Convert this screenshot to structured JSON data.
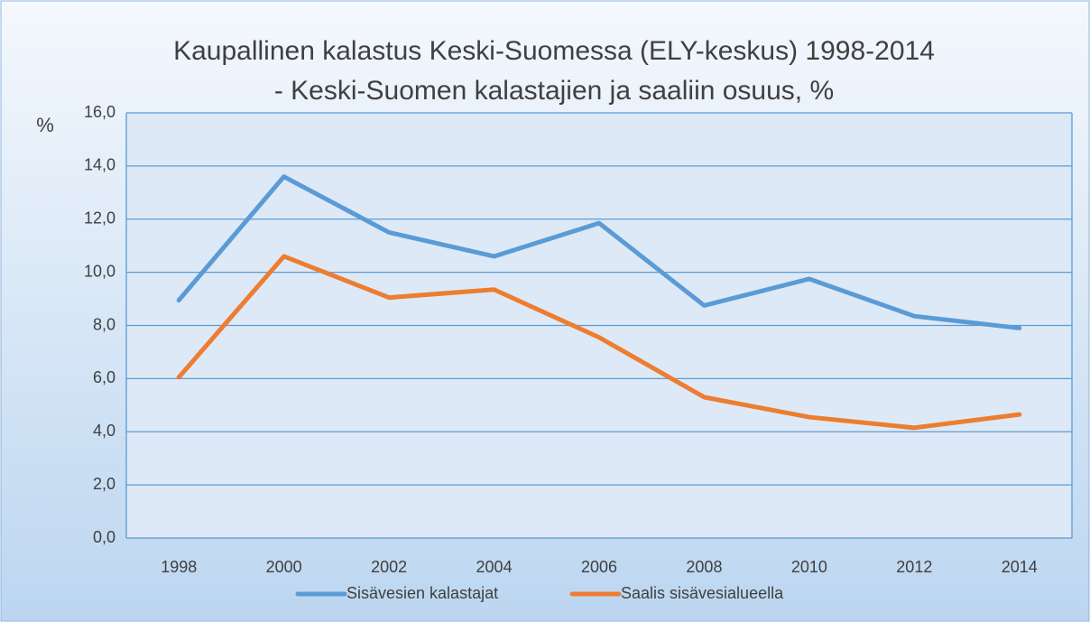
{
  "chart_data": {
    "type": "line",
    "title": [
      "Kaupallinen kalastus Keski-Suomessa (ELY-keskus) 1998-2014",
      "- Keski-Suomen kalastajien ja saaliin osuus, %"
    ],
    "y_label": "%",
    "categories": [
      "1998",
      "2000",
      "2002",
      "2004",
      "2006",
      "2008",
      "2010",
      "2012",
      "2014"
    ],
    "series": [
      {
        "name": "Sisävesien kalastajat",
        "color": "#5b9bd5",
        "values": [
          8.95,
          13.6,
          11.5,
          10.6,
          11.85,
          8.75,
          9.75,
          8.35,
          7.9
        ]
      },
      {
        "name": "Saalis sisävesialueella",
        "color": "#ed7d31",
        "values": [
          6.05,
          10.6,
          9.05,
          9.35,
          7.55,
          5.3,
          4.55,
          4.15,
          4.65
        ]
      }
    ],
    "ylim": [
      0,
      16
    ],
    "yticks": [
      {
        "value": 0,
        "label": "0,0"
      },
      {
        "value": 2,
        "label": "2,0"
      },
      {
        "value": 4,
        "label": "4,0"
      },
      {
        "value": 6,
        "label": "6,0"
      },
      {
        "value": 8,
        "label": "8,0"
      },
      {
        "value": 10,
        "label": "10,0"
      },
      {
        "value": 12,
        "label": "12,0"
      },
      {
        "value": 14,
        "label": "14,0"
      },
      {
        "value": 16,
        "label": "16,0"
      }
    ],
    "grid": true,
    "legend": "bottom"
  }
}
